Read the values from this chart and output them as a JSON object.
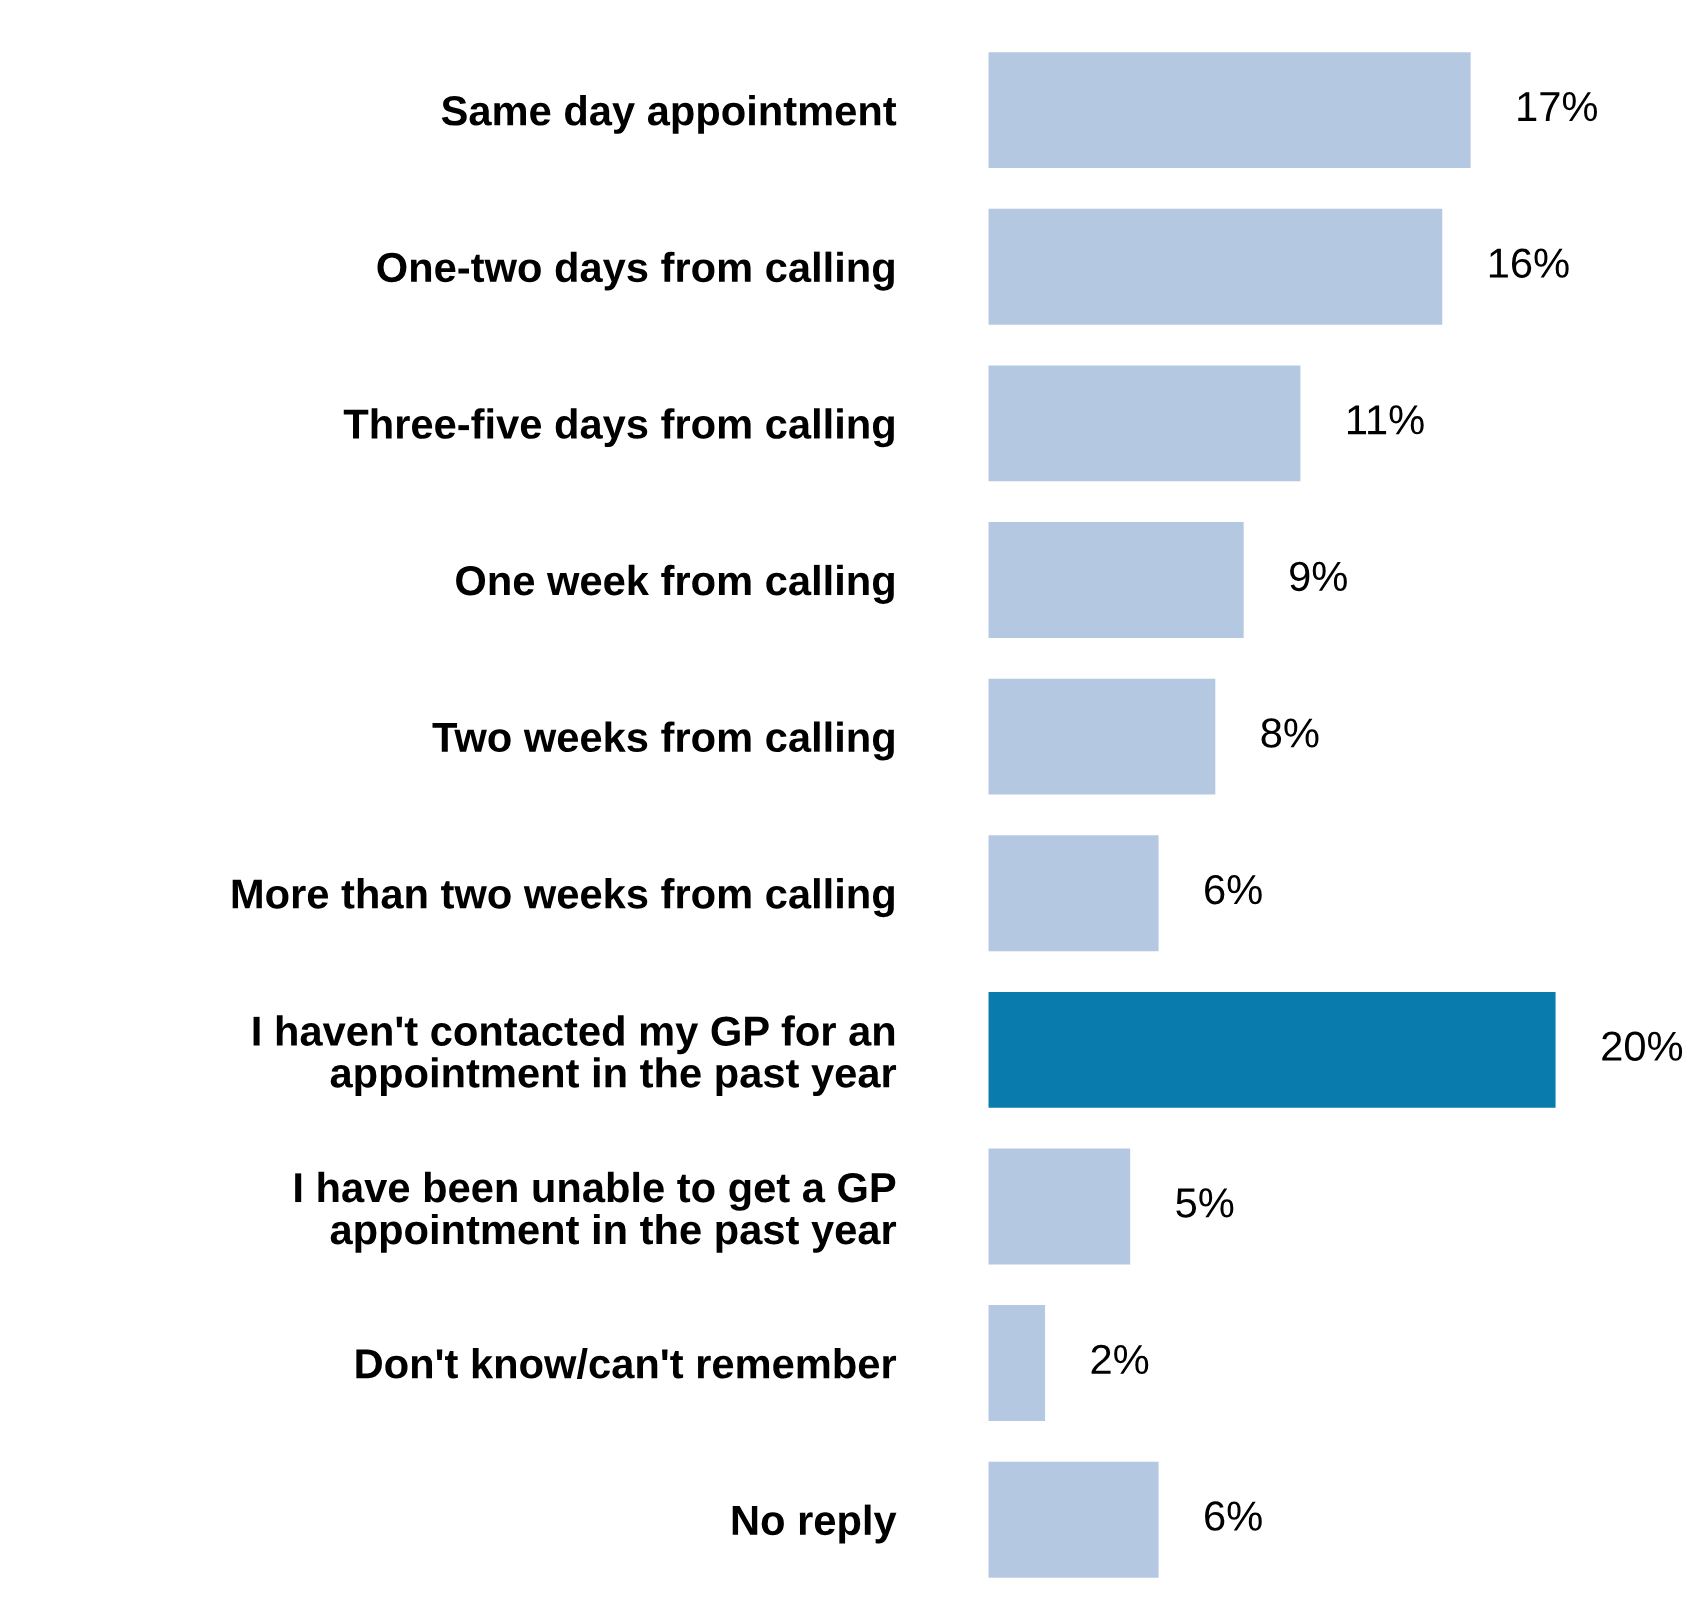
{
  "chart_data": {
    "type": "bar",
    "orientation": "horizontal",
    "categories": [
      "Same day appointment",
      "One-two days from calling",
      "Three-five days from calling",
      "One week from calling",
      "Two weeks from calling",
      "More than two weeks from calling",
      "I haven't contacted my GP for an\nappointment in the past year",
      "I have been unable to get a GP\nappointment in the past year",
      "Don't know/can't remember",
      "No reply"
    ],
    "values": [
      17,
      16,
      11,
      9,
      8,
      6,
      20,
      5,
      2,
      6
    ],
    "colors": [
      "#b5c8e1",
      "#b5c8e1",
      "#b5c8e1",
      "#b5c8e1",
      "#b5c8e1",
      "#b5c8e1",
      "#0a7bad",
      "#b5c8e1",
      "#b5c8e1",
      "#b5c8e1"
    ],
    "value_labels": [
      "17%",
      "16%",
      "11%",
      "9%",
      "8%",
      "6%",
      "20%",
      "5%",
      "2%",
      "6%"
    ],
    "grid": false,
    "legend": false
  }
}
